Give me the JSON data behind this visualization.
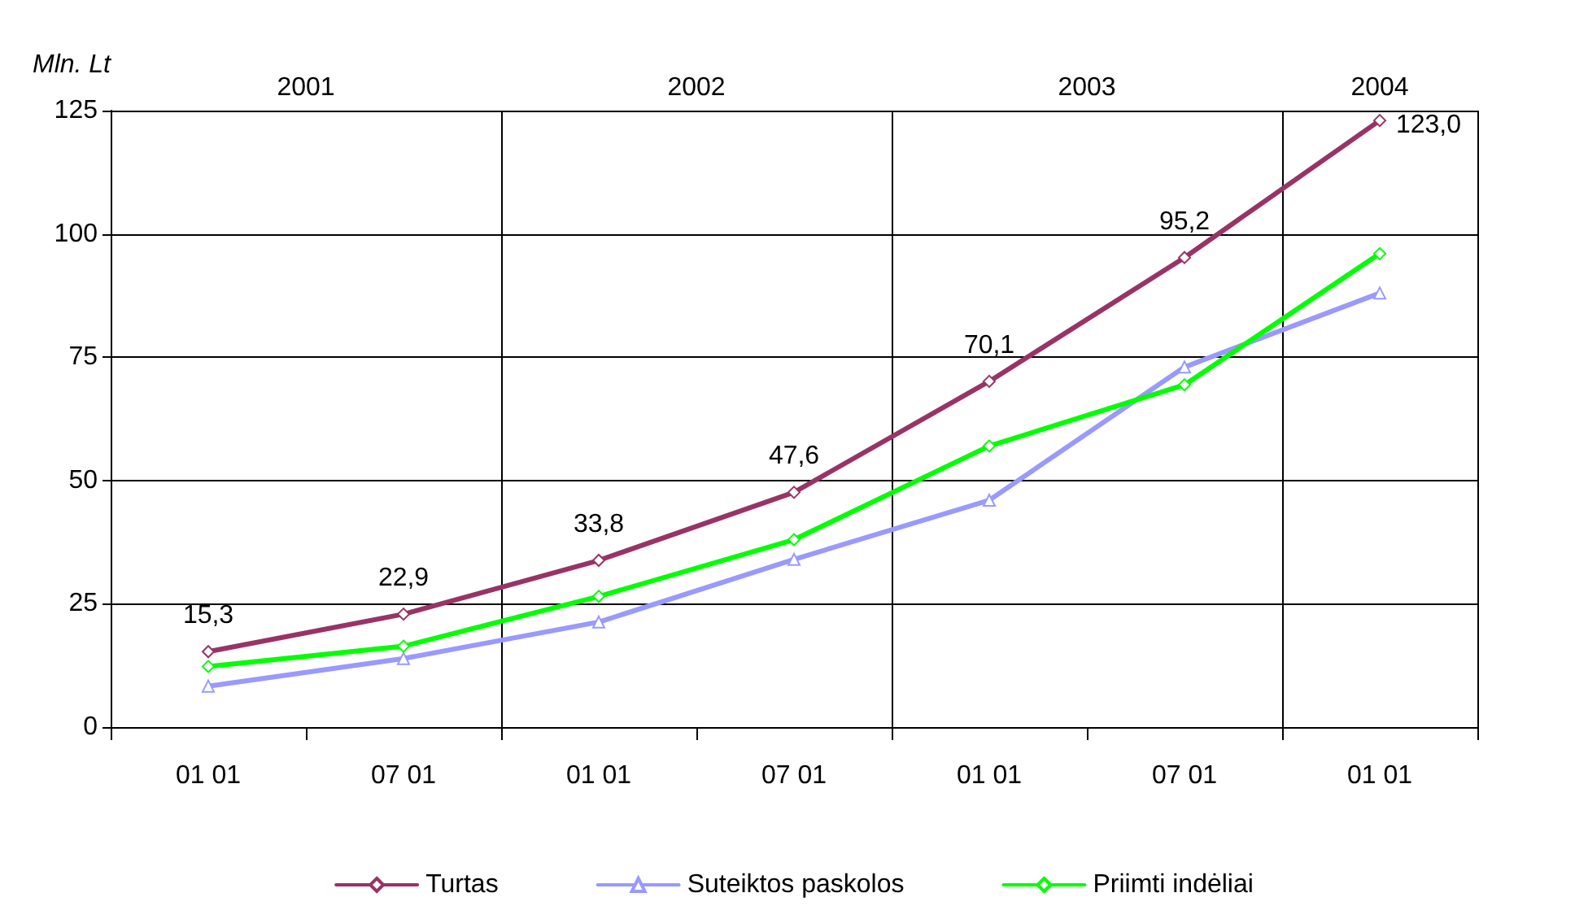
{
  "chart_data": {
    "type": "line",
    "ylabel": "Mln. Lt",
    "categories": [
      "01 01",
      "07 01",
      "01 01",
      "07 01",
      "01 01",
      "07 01",
      "01 01"
    ],
    "annotations": [
      "2001",
      "2002",
      "2003",
      "2004"
    ],
    "ylim": [
      0,
      125
    ],
    "yticks": [
      0,
      25,
      50,
      75,
      100,
      125
    ],
    "grid": true,
    "legend": "bottom",
    "line_style": "solid",
    "series": [
      {
        "name": "Turtas",
        "color": "#993366",
        "marker": "diamond",
        "values": [
          15.3,
          22.9,
          33.8,
          47.6,
          70.1,
          95.2,
          123.0
        ],
        "value_labels": [
          "15,3",
          "22,9",
          "33,8",
          "47,6",
          "70,1",
          "95,2",
          "123,0"
        ]
      },
      {
        "name": "Suteiktos paskolos",
        "color": "#9999ff",
        "marker": "triangle",
        "values": [
          8.3,
          13.9,
          21.3,
          34,
          46,
          73,
          88
        ]
      },
      {
        "name": "Priimti indėliai",
        "color": "#00ff00",
        "marker": "diamond",
        "values": [
          12.3,
          16.4,
          26.5,
          38,
          57,
          69.4,
          96
        ]
      }
    ]
  }
}
